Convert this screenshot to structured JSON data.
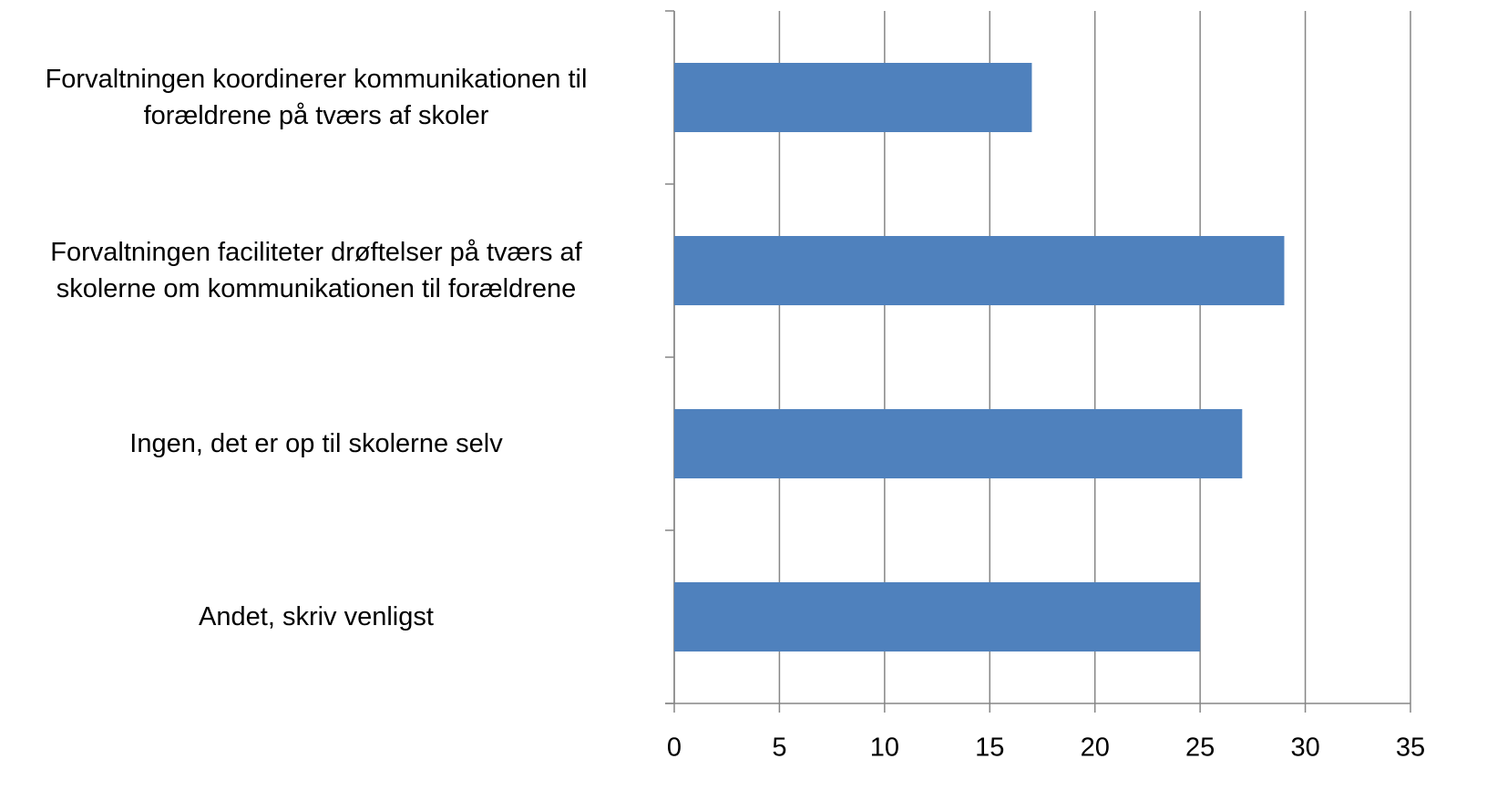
{
  "chart_data": {
    "type": "bar",
    "orientation": "horizontal",
    "categories": [
      "Forvaltningen koordinerer kommunikationen til\nforældrene på tværs af skoler",
      "Forvaltningen faciliteter drøftelser på tværs af\nskolerne om kommunikationen til forældrene",
      "Ingen, det er op til skolerne selv",
      "Andet, skriv venligst"
    ],
    "values": [
      17,
      29,
      27,
      25
    ],
    "color": "#4f81bd",
    "xlim": [
      0,
      35
    ],
    "xticks": [
      0,
      5,
      10,
      15,
      20,
      25,
      30,
      35
    ],
    "grid": true
  }
}
